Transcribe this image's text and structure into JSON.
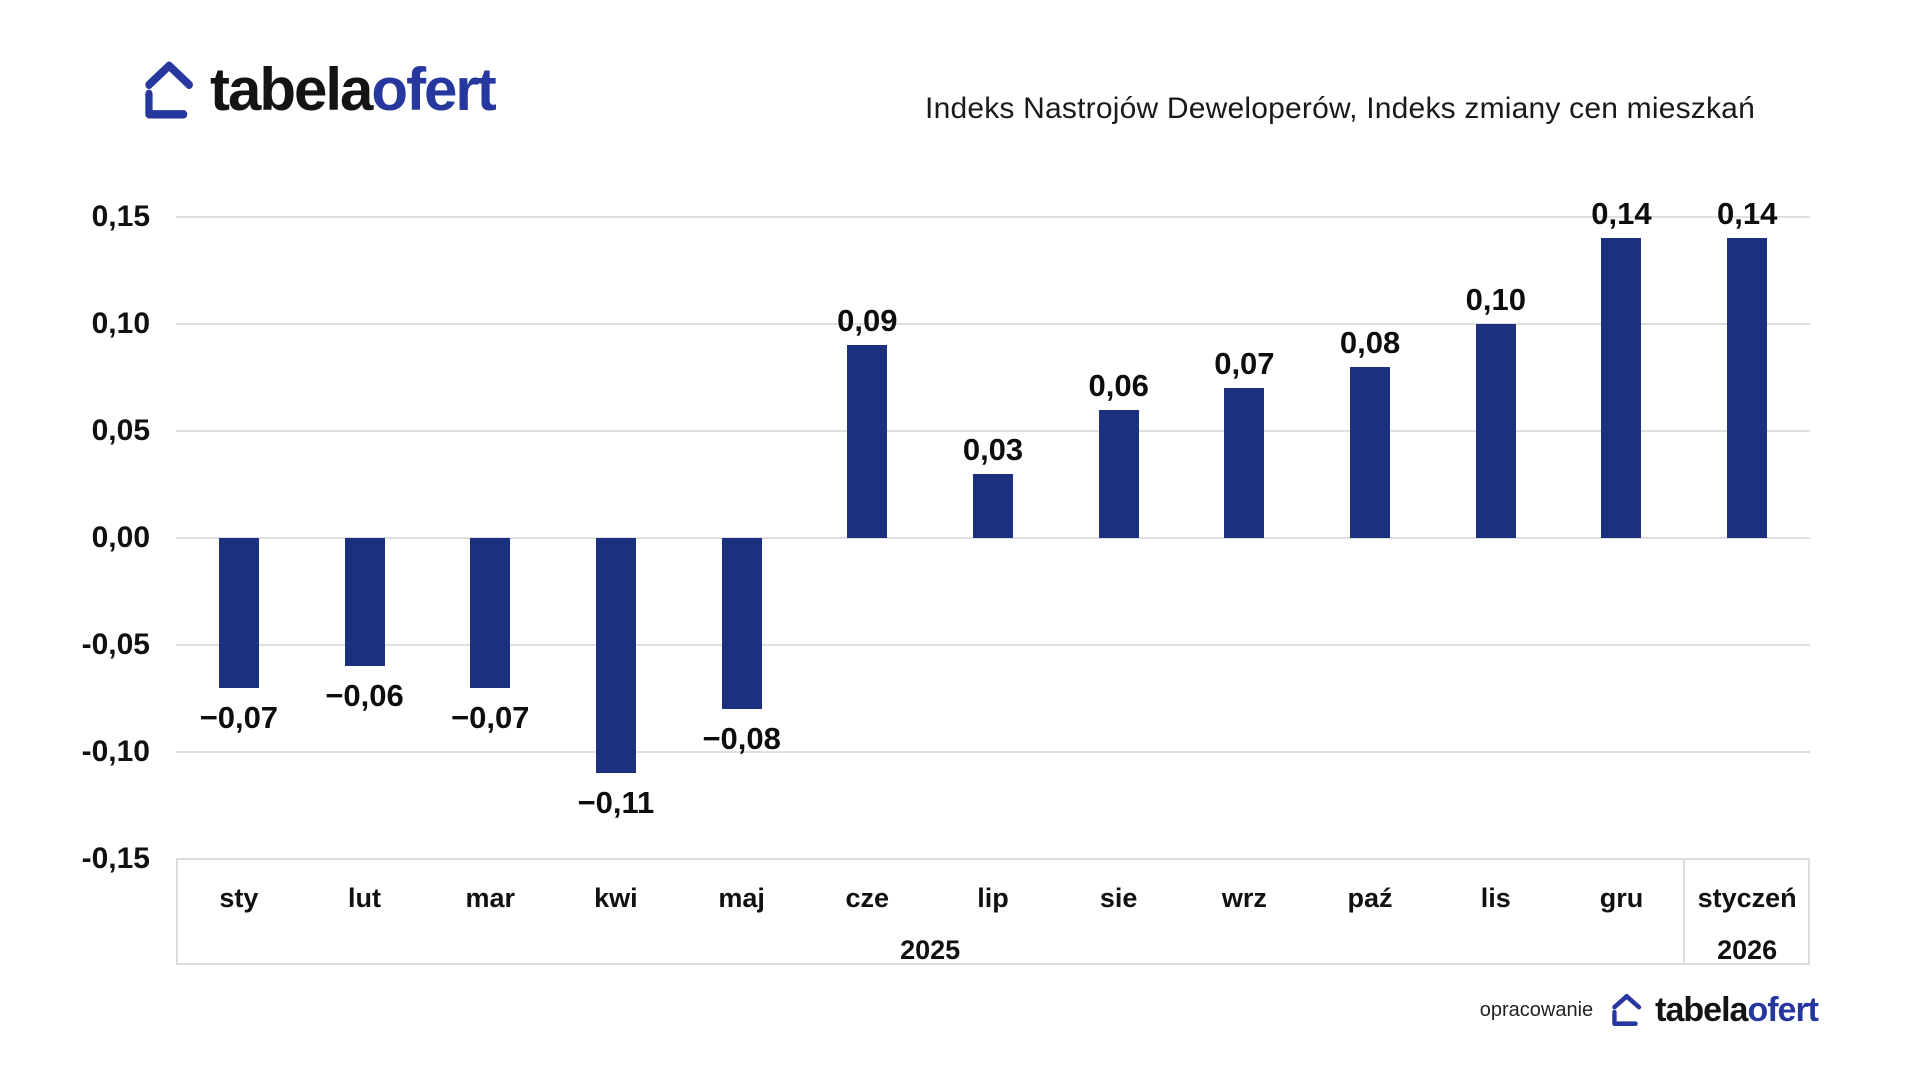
{
  "brand": {
    "part1": "tabela",
    "part2": "ofert"
  },
  "footer": {
    "credit": "opracowanie"
  },
  "chart_data": {
    "type": "bar",
    "title": "Indeks Nastrojów Deweloperów, Indeks zmiany cen mieszkań",
    "categories": [
      "sty",
      "lut",
      "mar",
      "kwi",
      "maj",
      "cze",
      "lip",
      "sie",
      "wrz",
      "paź",
      "lis",
      "gru",
      "styczeń"
    ],
    "values": [
      -0.07,
      -0.06,
      -0.07,
      -0.11,
      -0.08,
      0.09,
      0.03,
      0.06,
      0.07,
      0.08,
      0.1,
      0.14,
      0.14
    ],
    "value_labels": [
      "−0,07",
      "−0,06",
      "−0,07",
      "−0,11",
      "−0,08",
      "0,09",
      "0,03",
      "0,06",
      "0,07",
      "0,08",
      "0,10",
      "0,14",
      "0,14"
    ],
    "x_axis": {
      "year_groups": [
        {
          "label": "2025",
          "from": 0,
          "to": 11
        },
        {
          "label": "2026",
          "from": 12,
          "to": 12
        }
      ]
    },
    "y_axis": {
      "min": -0.15,
      "max": 0.15,
      "ticks": [
        0.15,
        0.1,
        0.05,
        0,
        -0.05,
        -0.1,
        -0.15
      ],
      "tick_labels": [
        "0,15",
        "0,10",
        "0,05",
        "0,00",
        "-0,05",
        "-0,10",
        "-0,15"
      ],
      "grid": true,
      "legend": "none"
    },
    "bar_color": "#1c3080"
  },
  "colors": {
    "brand_blue": "#26389e",
    "bar_navy": "#1c3080",
    "grid_gray": "#dfdfdf",
    "band_border_gray": "#dcdcdc",
    "text_black": "#111111"
  }
}
